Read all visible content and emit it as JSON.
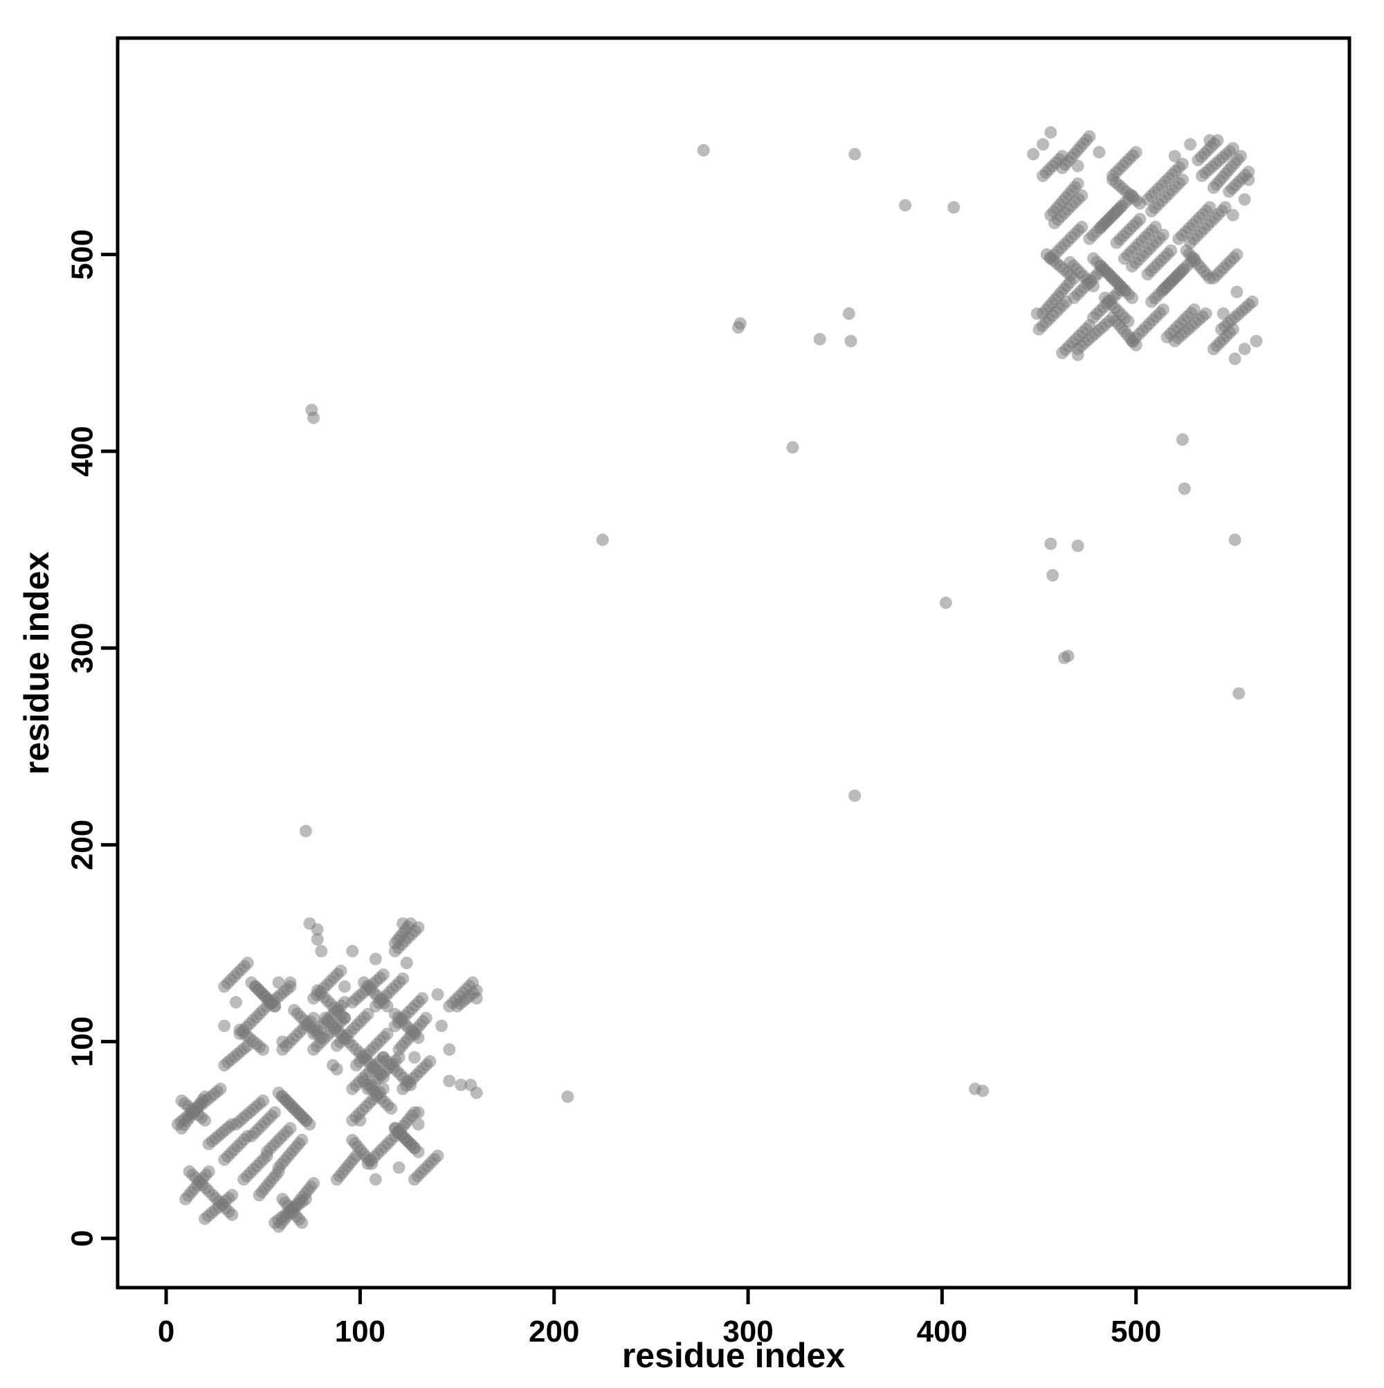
{
  "chart_data": {
    "type": "scatter",
    "title": "",
    "xlabel": "residue index",
    "ylabel": "residue index",
    "xlim": [
      -25,
      610
    ],
    "ylim": [
      -25,
      610
    ],
    "xticks": [
      0,
      100,
      200,
      300,
      400,
      500
    ],
    "yticks": [
      0,
      100,
      200,
      300,
      400,
      500
    ],
    "grid": false,
    "legend": "none",
    "marker": {
      "shape": "circle",
      "color": "#787878",
      "opacity": 0.5,
      "radius_px": 9
    },
    "symmetric": true,
    "description": "Residue-residue contact map: dense symmetric clusters near the diagonal for residues ~5-165 and ~445-565, plus sparse isolated off-diagonal contacts.",
    "segments": [
      [
        10,
        20,
        22,
        34,
        9
      ],
      [
        12,
        34,
        22,
        24,
        7
      ],
      [
        6,
        58,
        28,
        76,
        14
      ],
      [
        8,
        70,
        20,
        60,
        8
      ],
      [
        22,
        48,
        34,
        58,
        8
      ],
      [
        30,
        40,
        42,
        52,
        8
      ],
      [
        36,
        58,
        50,
        70,
        9
      ],
      [
        44,
        52,
        56,
        64,
        8
      ],
      [
        30,
        88,
        42,
        98,
        8
      ],
      [
        38,
        106,
        50,
        96,
        8
      ],
      [
        52,
        118,
        64,
        128,
        8
      ],
      [
        46,
        128,
        56,
        118,
        7
      ],
      [
        58,
        74,
        72,
        60,
        9
      ],
      [
        60,
        96,
        76,
        112,
        10
      ],
      [
        66,
        116,
        80,
        102,
        9
      ],
      [
        76,
        96,
        92,
        112,
        10
      ],
      [
        82,
        112,
        96,
        98,
        9
      ],
      [
        88,
        98,
        104,
        114,
        10
      ],
      [
        96,
        120,
        112,
        134,
        10
      ],
      [
        102,
        130,
        114,
        118,
        8
      ],
      [
        104,
        76,
        120,
        92,
        10
      ],
      [
        112,
        92,
        126,
        78,
        9
      ],
      [
        118,
        108,
        132,
        122,
        9
      ],
      [
        122,
        76,
        136,
        90,
        9
      ],
      [
        128,
        30,
        140,
        42,
        8
      ],
      [
        104,
        38,
        116,
        50,
        8
      ],
      [
        118,
        56,
        128,
        46,
        7
      ],
      [
        56,
        8,
        72,
        20,
        10
      ],
      [
        150,
        118,
        160,
        126,
        7
      ],
      [
        118,
        146,
        130,
        158,
        8
      ],
      [
        450,
        462,
        464,
        476,
        9
      ],
      [
        454,
        500,
        468,
        488,
        9
      ],
      [
        458,
        516,
        472,
        530,
        9
      ],
      [
        468,
        478,
        482,
        492,
        9
      ],
      [
        470,
        452,
        486,
        466,
        10
      ],
      [
        476,
        508,
        492,
        524,
        10
      ],
      [
        482,
        494,
        498,
        478,
        10
      ],
      [
        488,
        538,
        502,
        526,
        9
      ],
      [
        494,
        498,
        510,
        514,
        10
      ],
      [
        498,
        456,
        514,
        472,
        10
      ],
      [
        508,
        522,
        524,
        538,
        10
      ],
      [
        514,
        482,
        530,
        498,
        10
      ],
      [
        520,
        456,
        536,
        470,
        10
      ],
      [
        528,
        506,
        546,
        524,
        11
      ],
      [
        534,
        540,
        550,
        554,
        10
      ],
      [
        544,
        462,
        560,
        476,
        10
      ],
      [
        452,
        540,
        462,
        550,
        7
      ],
      [
        466,
        496,
        478,
        484,
        8
      ],
      [
        506,
        490,
        518,
        502,
        8
      ],
      [
        540,
        488,
        552,
        500,
        8
      ],
      [
        548,
        532,
        558,
        542,
        7
      ]
    ],
    "points": [
      [
        74,
        160
      ],
      [
        78,
        157
      ],
      [
        96,
        146
      ],
      [
        140,
        124
      ],
      [
        146,
        80
      ],
      [
        152,
        78
      ],
      [
        160,
        122
      ],
      [
        88,
        86
      ],
      [
        100,
        60
      ],
      [
        130,
        64
      ],
      [
        142,
        108
      ],
      [
        58,
        130
      ],
      [
        44,
        130
      ],
      [
        36,
        120
      ],
      [
        30,
        108
      ],
      [
        92,
        128
      ],
      [
        447,
        551
      ],
      [
        470,
        545
      ],
      [
        481,
        552
      ],
      [
        520,
        550
      ],
      [
        528,
        556
      ],
      [
        558,
        538
      ],
      [
        556,
        452
      ],
      [
        562,
        456
      ],
      [
        449,
        470
      ],
      [
        75,
        421
      ],
      [
        76,
        417
      ],
      [
        72,
        207
      ],
      [
        225,
        355
      ],
      [
        295,
        463
      ],
      [
        337,
        457
      ],
      [
        352,
        470
      ],
      [
        353,
        456
      ],
      [
        277,
        553
      ],
      [
        355,
        551
      ],
      [
        323,
        402
      ],
      [
        381,
        525
      ],
      [
        406,
        524
      ],
      [
        465,
        296
      ]
    ]
  }
}
